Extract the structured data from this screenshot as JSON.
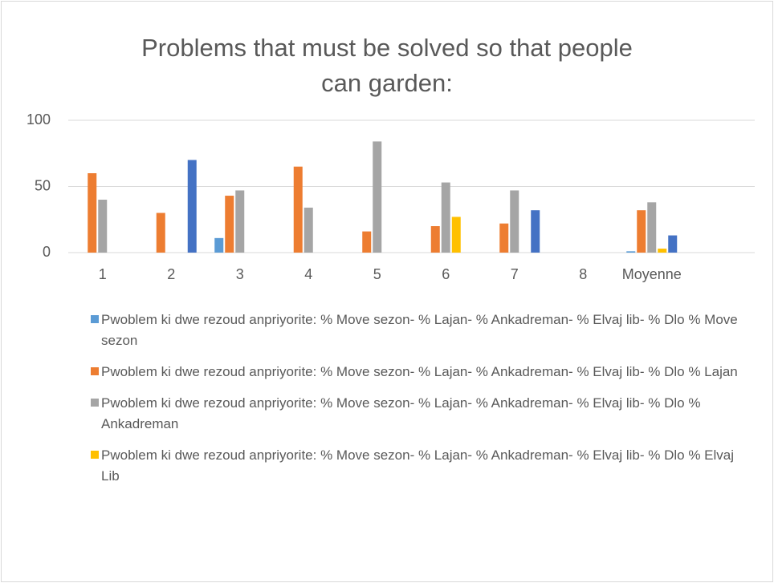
{
  "chart_data": {
    "type": "bar",
    "title": "Problems that must be solved so that people can garden:",
    "categories": [
      "1",
      "2",
      "3",
      "4",
      "5",
      "6",
      "7",
      "8",
      "Moyenne",
      null
    ],
    "series": [
      {
        "name": "Pwoblem ki dwe rezoud anpriyorite: % Move sezon- % Lajan- % Ankadreman- % Elvaj lib- % Dlo % Move sezon",
        "color": "#5b9bd5",
        "values": [
          0,
          0,
          11,
          0,
          0,
          0,
          0,
          0,
          1,
          null
        ]
      },
      {
        "name": "Pwoblem ki dwe rezoud anpriyorite: % Move sezon- % Lajan- % Ankadreman- % Elvaj lib- % Dlo % Lajan",
        "color": "#ed7d31",
        "values": [
          60,
          30,
          43,
          65,
          16,
          20,
          22,
          0,
          32,
          null
        ]
      },
      {
        "name": "Pwoblem ki dwe rezoud anpriyorite: % Move sezon- % Lajan- % Ankadreman- % Elvaj lib- % Dlo % Ankadreman",
        "color": "#a5a5a5",
        "values": [
          40,
          0,
          47,
          34,
          84,
          53,
          47,
          0,
          38,
          null
        ]
      },
      {
        "name": "Pwoblem ki dwe rezoud anpriyorite: % Move sezon- % Lajan- % Ankadreman- % Elvaj lib- % Dlo % Elvaj Lib",
        "color": "#ffc000",
        "values": [
          0,
          0,
          0,
          0,
          0,
          27,
          0,
          0,
          3,
          null
        ]
      },
      {
        "color": "#4472c4",
        "values": [
          0,
          70,
          0,
          0,
          0,
          0,
          32,
          0,
          13,
          null
        ]
      }
    ],
    "ylim": [
      0,
      100
    ],
    "yticks": [
      0,
      50,
      100
    ],
    "grid": true
  }
}
